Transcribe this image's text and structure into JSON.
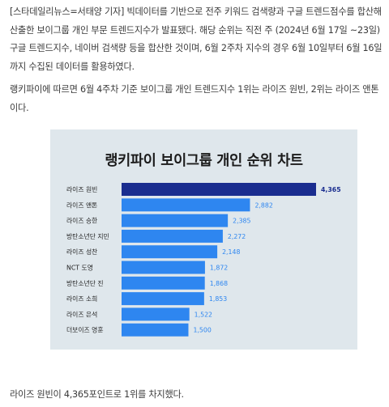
{
  "article": {
    "paragraph1": "[스타데일리뉴스=서태양 기자] 빅데이터를 기반으로 전주 키워드 검색량과 구글 트렌드점수를 합산해 산출한 보이그룹 개인 부문 트렌드지수가 발표됐다. 해당 순위는 직전 주 (2024년 6월 17일 ~23일) 구글 트렌드지수, 네이버 검색량 등을 합산한 것이며, 6월 2주차 지수의 경우 6월 10일부터 6월 16일까지 수집된 데이터를 활용하였다.",
    "paragraph2": "랭키파이에 따르면 6월 4주차 기준 보이그룹 개인 트렌드지수 1위는 라이즈 원빈, 2위는 라이즈 앤톤이다.",
    "paragraph3": "라이즈 원빈이 4,365포인트로 1위를 차지했다."
  },
  "colors": {
    "panel_bg": "#dfe7ec",
    "top_bar": "#1a2d8f",
    "bar": "#2e86f0",
    "top_value_text": "#1a2d8f",
    "value_text": "#2e86f0"
  },
  "chart_data": {
    "type": "bar",
    "orientation": "horizontal",
    "title": "랭키파이 보이그룹 개인 순위 차트",
    "categories": [
      "라이즈 원빈",
      "라이즈 앤톤",
      "라이즈 승한",
      "방탄소년단 지민",
      "라이즈 성찬",
      "NCT 도영",
      "방탄소년단 진",
      "라이즈 소희",
      "라이즈 은석",
      "더보이즈 영훈"
    ],
    "values": [
      4365,
      2882,
      2385,
      2272,
      2148,
      1872,
      1868,
      1853,
      1522,
      1500
    ],
    "value_labels": [
      "4,365",
      "2,882",
      "2,385",
      "2,272",
      "2,148",
      "1,872",
      "1,868",
      "1,853",
      "1,522",
      "1,500"
    ],
    "xlim": [
      0,
      4365
    ],
    "grid": false,
    "legend": "none"
  }
}
